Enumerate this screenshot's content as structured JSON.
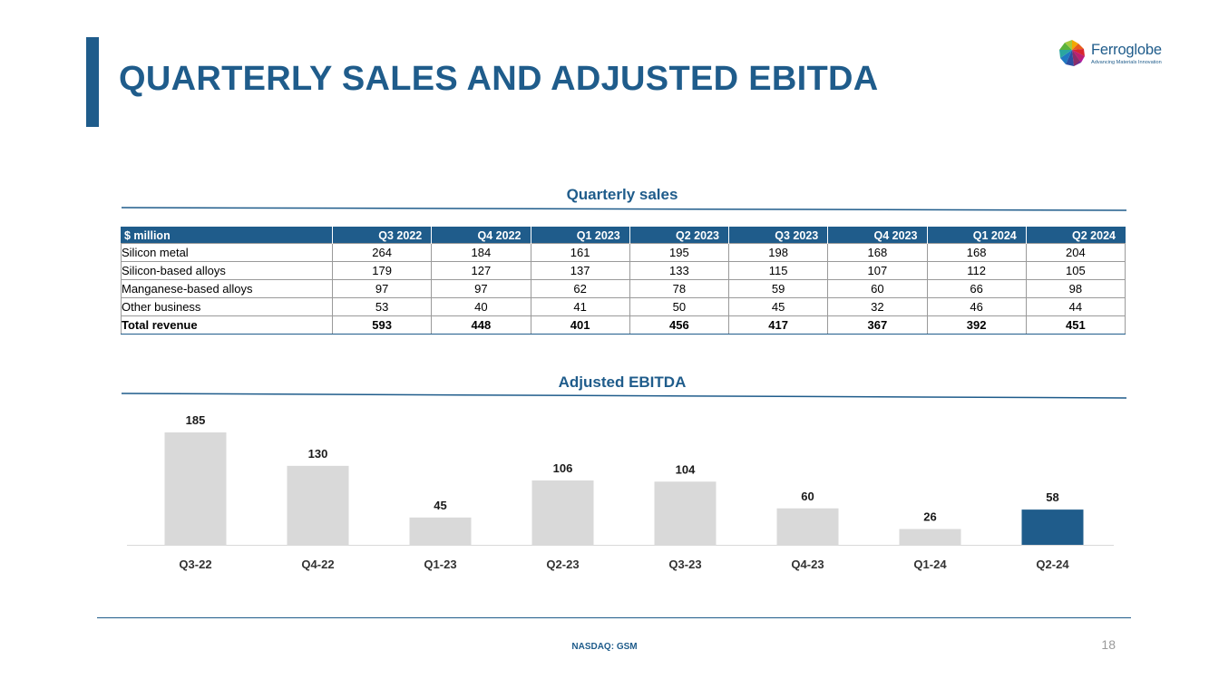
{
  "header": {
    "title": "QUARTERLY SALES AND ADJUSTED EBITDA"
  },
  "logo": {
    "name": "Ferroglobe",
    "tagline": "Advancing Materials Innovation"
  },
  "sales": {
    "title": "Quarterly sales",
    "columns": [
      "$ million",
      "Q3 2022",
      "Q4 2022",
      "Q1 2023",
      "Q2 2023",
      "Q3 2023",
      "Q4 2023",
      "Q1 2024",
      "Q2 2024"
    ],
    "rows": [
      {
        "label": "Silicon metal",
        "values": [
          "264",
          "184",
          "161",
          "195",
          "198",
          "168",
          "168",
          "204"
        ]
      },
      {
        "label": "Silicon-based alloys",
        "values": [
          "179",
          "127",
          "137",
          "133",
          "115",
          "107",
          "112",
          "105"
        ]
      },
      {
        "label": "Manganese-based alloys",
        "values": [
          "97",
          "97",
          "62",
          "78",
          "59",
          "60",
          "66",
          "98"
        ]
      },
      {
        "label": "Other business",
        "values": [
          "53",
          "40",
          "41",
          "50",
          "45",
          "32",
          "46",
          "44"
        ]
      },
      {
        "label": "Total revenue",
        "values": [
          "593",
          "448",
          "401",
          "456",
          "417",
          "367",
          "392",
          "451"
        ]
      }
    ]
  },
  "chart_data": {
    "type": "bar",
    "title": "Adjusted EBITDA",
    "xlabel": "",
    "ylabel": "",
    "categories": [
      "Q3-22",
      "Q4-22",
      "Q1-23",
      "Q2-23",
      "Q3-23",
      "Q4-23",
      "Q1-24",
      "Q2-24"
    ],
    "values": [
      185,
      130,
      45,
      106,
      104,
      60,
      26,
      58
    ],
    "ylim": [
      0,
      185
    ],
    "grid": false,
    "legend": "none",
    "colors": {
      "default": "#d9d9d9",
      "highlight": "#1f5c8b",
      "highlight_category": "Q2-24"
    }
  },
  "footer": {
    "ticker": "NASDAQ: GSM",
    "page_number": "18"
  },
  "colors": {
    "brand": "#1f5c8b"
  }
}
